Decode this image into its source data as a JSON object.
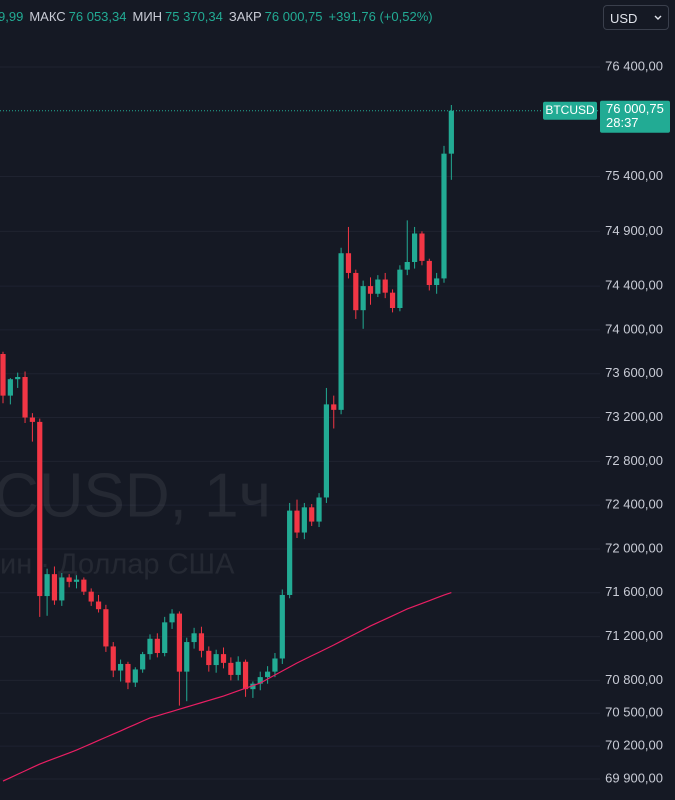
{
  "header": {
    "cut_value": "9,99",
    "stats": [
      {
        "label": "МАКС",
        "value": "76 053,34"
      },
      {
        "label": "МИН",
        "value": "75 370,34"
      },
      {
        "label": "ЗАКР",
        "value": "76 000,75"
      }
    ],
    "change": "+391,76 (+0,52%)",
    "currency": "USD"
  },
  "watermark": {
    "line1": "CUSD, 1ч",
    "line2": "ин · Доллар США"
  },
  "price_badge": {
    "symbol": "BTCUSD",
    "price": "76 000,75",
    "timer": "28:37"
  },
  "chart_data": {
    "type": "candlestick",
    "up_color": "#22ab94",
    "down_color": "#f23645",
    "ma_color": "#e91e63",
    "grid": true,
    "ylim": [
      69708,
      77012
    ],
    "yticks": [
      {
        "value": 76400,
        "label": "76 400,00"
      },
      {
        "value": 75400,
        "label": "75 400,00"
      },
      {
        "value": 74900,
        "label": "74 900,00"
      },
      {
        "value": 74400,
        "label": "74 400,00"
      },
      {
        "value": 74000,
        "label": "74 000,00"
      },
      {
        "value": 73600,
        "label": "73 600,00"
      },
      {
        "value": 73200,
        "label": "73 200,00"
      },
      {
        "value": 72800,
        "label": "72 800,00"
      },
      {
        "value": 72400,
        "label": "72 400,00"
      },
      {
        "value": 72000,
        "label": "72 000,00"
      },
      {
        "value": 71600,
        "label": "71 600,00"
      },
      {
        "value": 71200,
        "label": "71 200,00"
      },
      {
        "value": 70800,
        "label": "70 800,00"
      },
      {
        "value": 70500,
        "label": "70 500,00"
      },
      {
        "value": 70200,
        "label": "70 200,00"
      },
      {
        "value": 69900,
        "label": "69 900,00"
      }
    ],
    "open": [
      73780,
      73400,
      73550,
      73570,
      73200,
      73160,
      71570,
      71770,
      71530,
      71740,
      71700,
      71720,
      71610,
      71520,
      71450,
      71110,
      70890,
      70950,
      70780,
      70900,
      71040,
      71180,
      71050,
      71330,
      71410,
      70880,
      71150,
      71230,
      71070,
      70940,
      71040,
      70960,
      70850,
      70970,
      70720,
      70770,
      70830,
      70880,
      71000,
      71580,
      72350,
      72150,
      72380,
      72250,
      72470,
      73320,
      73270,
      74700,
      74520,
      74180,
      74400,
      74330,
      74460,
      74340,
      74200,
      74550,
      74620,
      74880,
      74630,
      74410,
      74470,
      75608.99
    ],
    "high": [
      73800,
      73560,
      73610,
      73620,
      73240,
      73190,
      71820,
      71840,
      71780,
      71770,
      71760,
      71740,
      71640,
      71580,
      71490,
      71150,
      70990,
      70970,
      70920,
      71060,
      71220,
      71230,
      71380,
      71450,
      71430,
      71190,
      71280,
      71290,
      71110,
      71080,
      71100,
      71010,
      71020,
      70990,
      70790,
      70880,
      70930,
      71050,
      71630,
      72420,
      72450,
      72420,
      72410,
      72510,
      73470,
      73400,
      74750,
      74940,
      74550,
      74450,
      74480,
      74500,
      74520,
      74370,
      74590,
      75000,
      74940,
      74900,
      74650,
      74520,
      75680,
      76053.34
    ],
    "low": [
      73330,
      73320,
      73470,
      73150,
      72980,
      71380,
      71390,
      71490,
      71480,
      71650,
      71640,
      71580,
      71480,
      71420,
      71060,
      70830,
      70790,
      70720,
      70740,
      70870,
      70990,
      71010,
      71020,
      71270,
      70570,
      70610,
      71090,
      71010,
      70880,
      70870,
      70910,
      70800,
      70800,
      70650,
      70640,
      70710,
      70770,
      70830,
      70950,
      71550,
      72100,
      72090,
      72210,
      72200,
      72420,
      73100,
      73230,
      74470,
      74100,
      74010,
      74230,
      74300,
      74290,
      74160,
      74170,
      74500,
      74560,
      74590,
      74360,
      74330,
      74430,
      75370.34
    ],
    "close": [
      73400,
      73550,
      73570,
      73200,
      73160,
      71570,
      71770,
      71530,
      71740,
      71700,
      71720,
      71610,
      71520,
      71450,
      71110,
      70890,
      70950,
      70780,
      70900,
      71040,
      71180,
      71050,
      71330,
      71410,
      70880,
      71150,
      71230,
      71070,
      70940,
      71040,
      70960,
      70850,
      70970,
      70720,
      70770,
      70830,
      70880,
      71000,
      71580,
      72350,
      72150,
      72380,
      72250,
      72470,
      73320,
      73270,
      74700,
      74520,
      74180,
      74400,
      74330,
      74460,
      74340,
      74200,
      74550,
      74620,
      74880,
      74630,
      74410,
      74470,
      75608.99,
      76000.75
    ],
    "ma": [
      69881,
      69912,
      69943,
      69974,
      70005,
      70036,
      70062,
      70087,
      70113,
      70138,
      70164,
      70193,
      70222,
      70252,
      70281,
      70310,
      70339,
      70369,
      70398,
      70428,
      70457,
      70477,
      70497,
      70517,
      70537,
      70557,
      70577,
      70597,
      70617,
      70637,
      70657,
      70681,
      70705,
      70729,
      70752,
      70776,
      70813,
      70849,
      70886,
      70922,
      70959,
      70992,
      71025,
      71057,
      71090,
      71123,
      71158,
      71193,
      71227,
      71262,
      71297,
      71328,
      71359,
      71390,
      71421,
      71452,
      71477,
      71503,
      71528,
      71554,
      71579,
      71602
    ]
  }
}
